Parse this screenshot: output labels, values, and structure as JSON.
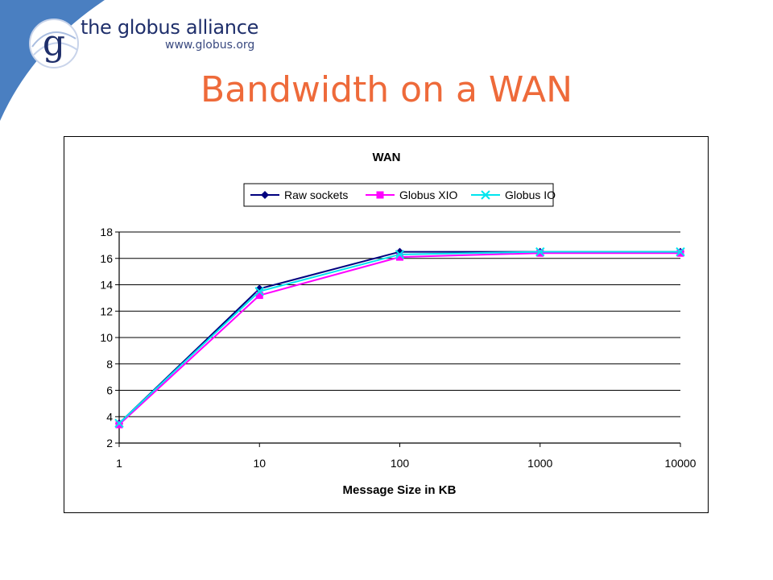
{
  "brand": {
    "name": "the globus alliance",
    "url": "www.globus.org",
    "logo_letter": "g",
    "logo_icon": "globus-swirl-logo"
  },
  "slide": {
    "title": "Bandwidth on a WAN"
  },
  "colors": {
    "corner_blue": "#4a7fc1",
    "title_orange": "#ee6a3a",
    "brand_navy": "#1f2f6b"
  },
  "chart_data": {
    "type": "line",
    "title": "WAN",
    "xlabel": "Message Size in KB",
    "ylabel": "",
    "x_scale": "log",
    "x": [
      1,
      10,
      100,
      1000,
      10000
    ],
    "x_tick_labels": [
      "1",
      "10",
      "100",
      "1000",
      "10000"
    ],
    "xlim": [
      1,
      10000
    ],
    "ylim": [
      2,
      18
    ],
    "y_ticks": [
      2,
      4,
      6,
      8,
      10,
      12,
      14,
      16,
      18
    ],
    "grid": "horizontal",
    "legend_position": "top",
    "series": [
      {
        "name": "Raw sockets",
        "color": "#00007f",
        "marker": "diamond",
        "values": [
          3.5,
          13.7,
          16.5,
          16.5,
          16.5
        ]
      },
      {
        "name": "Globus XIO",
        "color": "#ff00ff",
        "marker": "square",
        "values": [
          3.4,
          13.2,
          16.1,
          16.4,
          16.4
        ]
      },
      {
        "name": "Globus IO",
        "color": "#00e5ee",
        "marker": "x",
        "values": [
          3.5,
          13.5,
          16.3,
          16.5,
          16.5
        ]
      }
    ]
  }
}
